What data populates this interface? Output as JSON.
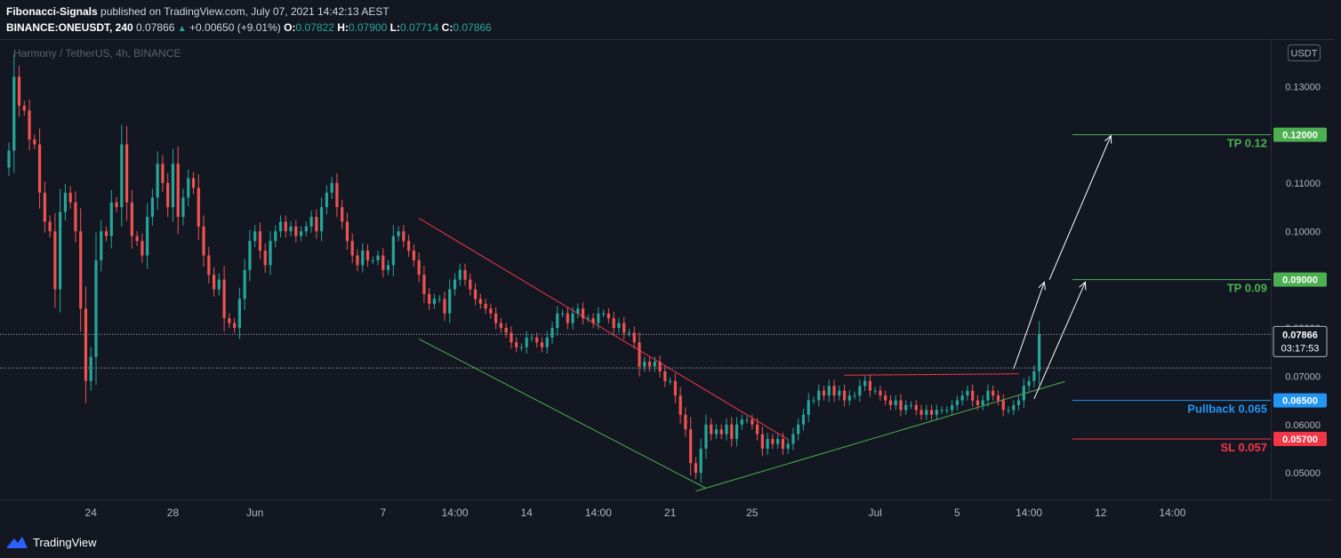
{
  "header": {
    "author": "Fibonacci-Signals",
    "published_text": "published on TradingView.com, July 07, 2021 14:42:13 AEST",
    "symbol": "BINANCE:ONEUSDT, 240",
    "last": "0.07866",
    "change": "+0.00650 (+9.01%)",
    "o_label": "O:",
    "o_value": "0.07822",
    "h_label": "H:",
    "h_value": "0.07900",
    "l_label": "L:",
    "l_value": "0.07714",
    "c_label": "C:",
    "c_value": "0.07866"
  },
  "footer": {
    "brand": "TradingView"
  },
  "chart_data": {
    "type": "candlestick",
    "title": "Harmony / TetherUS, 4h, BINANCE",
    "currency_badge": "USDT",
    "y_range": [
      0.0445,
      0.1398
    ],
    "y_ticks": [
      0.13,
      0.11,
      0.1,
      0.08,
      0.07,
      0.06,
      0.05
    ],
    "y_tick_labels": [
      "0.13000",
      "0.11000",
      "0.10000",
      "0.08000",
      "0.07000",
      "0.06000",
      "0.05000"
    ],
    "x_range": [
      0,
      246
    ],
    "x_ticks": [
      {
        "label": "24",
        "x": 16
      },
      {
        "label": "28",
        "x": 32
      },
      {
        "label": "Jun",
        "x": 48
      },
      {
        "label": "7",
        "x": 73
      },
      {
        "label": "14:00",
        "x": 87
      },
      {
        "label": "14",
        "x": 101
      },
      {
        "label": "14:00",
        "x": 115
      },
      {
        "label": "21",
        "x": 129
      },
      {
        "label": "25",
        "x": 145
      },
      {
        "label": "Jul",
        "x": 169
      },
      {
        "label": "5",
        "x": 185
      },
      {
        "label": "14:00",
        "x": 199
      },
      {
        "label": "12",
        "x": 213
      },
      {
        "label": "14:00",
        "x": 227
      }
    ],
    "closes": [
      0.1167,
      0.132,
      0.126,
      0.125,
      0.119,
      0.118,
      0.108,
      0.102,
      0.1,
      0.088,
      0.104,
      0.108,
      0.106,
      0.1,
      0.084,
      0.069,
      0.074,
      0.094,
      0.1,
      0.099,
      0.106,
      0.105,
      0.118,
      0.106,
      0.099,
      0.098,
      0.095,
      0.103,
      0.107,
      0.114,
      0.11,
      0.105,
      0.114,
      0.103,
      0.107,
      0.111,
      0.109,
      0.101,
      0.095,
      0.091,
      0.088,
      0.09,
      0.082,
      0.081,
      0.08,
      0.086,
      0.092,
      0.098,
      0.1,
      0.096,
      0.093,
      0.098,
      0.1,
      0.102,
      0.1,
      0.101,
      0.099,
      0.1,
      0.101,
      0.103,
      0.1,
      0.105,
      0.108,
      0.11,
      0.105,
      0.102,
      0.098,
      0.095,
      0.093,
      0.096,
      0.094,
      0.094,
      0.095,
      0.092,
      0.093,
      0.099,
      0.1,
      0.098,
      0.096,
      0.094,
      0.091,
      0.087,
      0.085,
      0.086,
      0.086,
      0.083,
      0.088,
      0.09,
      0.092,
      0.09,
      0.088,
      0.086,
      0.085,
      0.084,
      0.083,
      0.081,
      0.08,
      0.079,
      0.077,
      0.076,
      0.076,
      0.078,
      0.078,
      0.077,
      0.076,
      0.078,
      0.08,
      0.083,
      0.083,
      0.081,
      0.083,
      0.084,
      0.082,
      0.082,
      0.081,
      0.083,
      0.083,
      0.082,
      0.08,
      0.081,
      0.079,
      0.079,
      0.077,
      0.072,
      0.073,
      0.072,
      0.073,
      0.071,
      0.069,
      0.069,
      0.066,
      0.062,
      0.059,
      0.052,
      0.05,
      0.055,
      0.06,
      0.058,
      0.059,
      0.058,
      0.06,
      0.057,
      0.06,
      0.061,
      0.061,
      0.06,
      0.058,
      0.055,
      0.057,
      0.056,
      0.057,
      0.055,
      0.056,
      0.058,
      0.06,
      0.062,
      0.065,
      0.065,
      0.067,
      0.066,
      0.068,
      0.066,
      0.067,
      0.065,
      0.066,
      0.066,
      0.068,
      0.069,
      0.067,
      0.067,
      0.066,
      0.065,
      0.064,
      0.065,
      0.063,
      0.064,
      0.064,
      0.063,
      0.062,
      0.063,
      0.062,
      0.063,
      0.063,
      0.063,
      0.064,
      0.065,
      0.066,
      0.067,
      0.065,
      0.064,
      0.065,
      0.067,
      0.066,
      0.065,
      0.063,
      0.063,
      0.064,
      0.065,
      0.068,
      0.069,
      0.071,
      0.0787
    ],
    "levels": [
      {
        "label": "TP 0.12",
        "price": 0.12,
        "price_label": "0.12000",
        "color": "#4caf50"
      },
      {
        "label": "TP 0.09",
        "price": 0.09,
        "price_label": "0.09000",
        "color": "#4caf50"
      },
      {
        "label": "Pullback 0.065",
        "price": 0.065,
        "price_label": "0.06500",
        "color": "#2196f3"
      },
      {
        "label": "SL 0.057",
        "price": 0.057,
        "price_label": "0.05700",
        "color": "#f23645"
      }
    ],
    "last_price": {
      "value": 0.07866,
      "label": "0.07866",
      "countdown": "03:17:53"
    },
    "dotted_lines": [
      0.07866,
      0.0717
    ],
    "trendlines": [
      {
        "color": "#f23645",
        "from": [
          80,
          0.1027
        ],
        "to": [
          152,
          0.0569
        ]
      },
      {
        "color": "#4caf50",
        "from": [
          80,
          0.0777
        ],
        "to": [
          136,
          0.0468
        ]
      },
      {
        "color": "#4caf50",
        "from": [
          134,
          0.0462
        ],
        "to": [
          206,
          0.0689
        ]
      },
      {
        "color": "#f23645",
        "from": [
          163,
          0.0702
        ],
        "to": [
          197,
          0.0705
        ]
      }
    ],
    "arrows": [
      {
        "from": [
          196,
          0.0715
        ],
        "to": [
          202,
          0.0895
        ]
      },
      {
        "from": [
          203,
          0.09
        ],
        "to": [
          215,
          0.1198
        ]
      },
      {
        "from": [
          200,
          0.0653
        ],
        "to": [
          210,
          0.0895
        ]
      }
    ],
    "colors": {
      "up": "#26a69a",
      "down": "#ef5350",
      "background": "#131722",
      "text": "#b2b5be"
    }
  }
}
